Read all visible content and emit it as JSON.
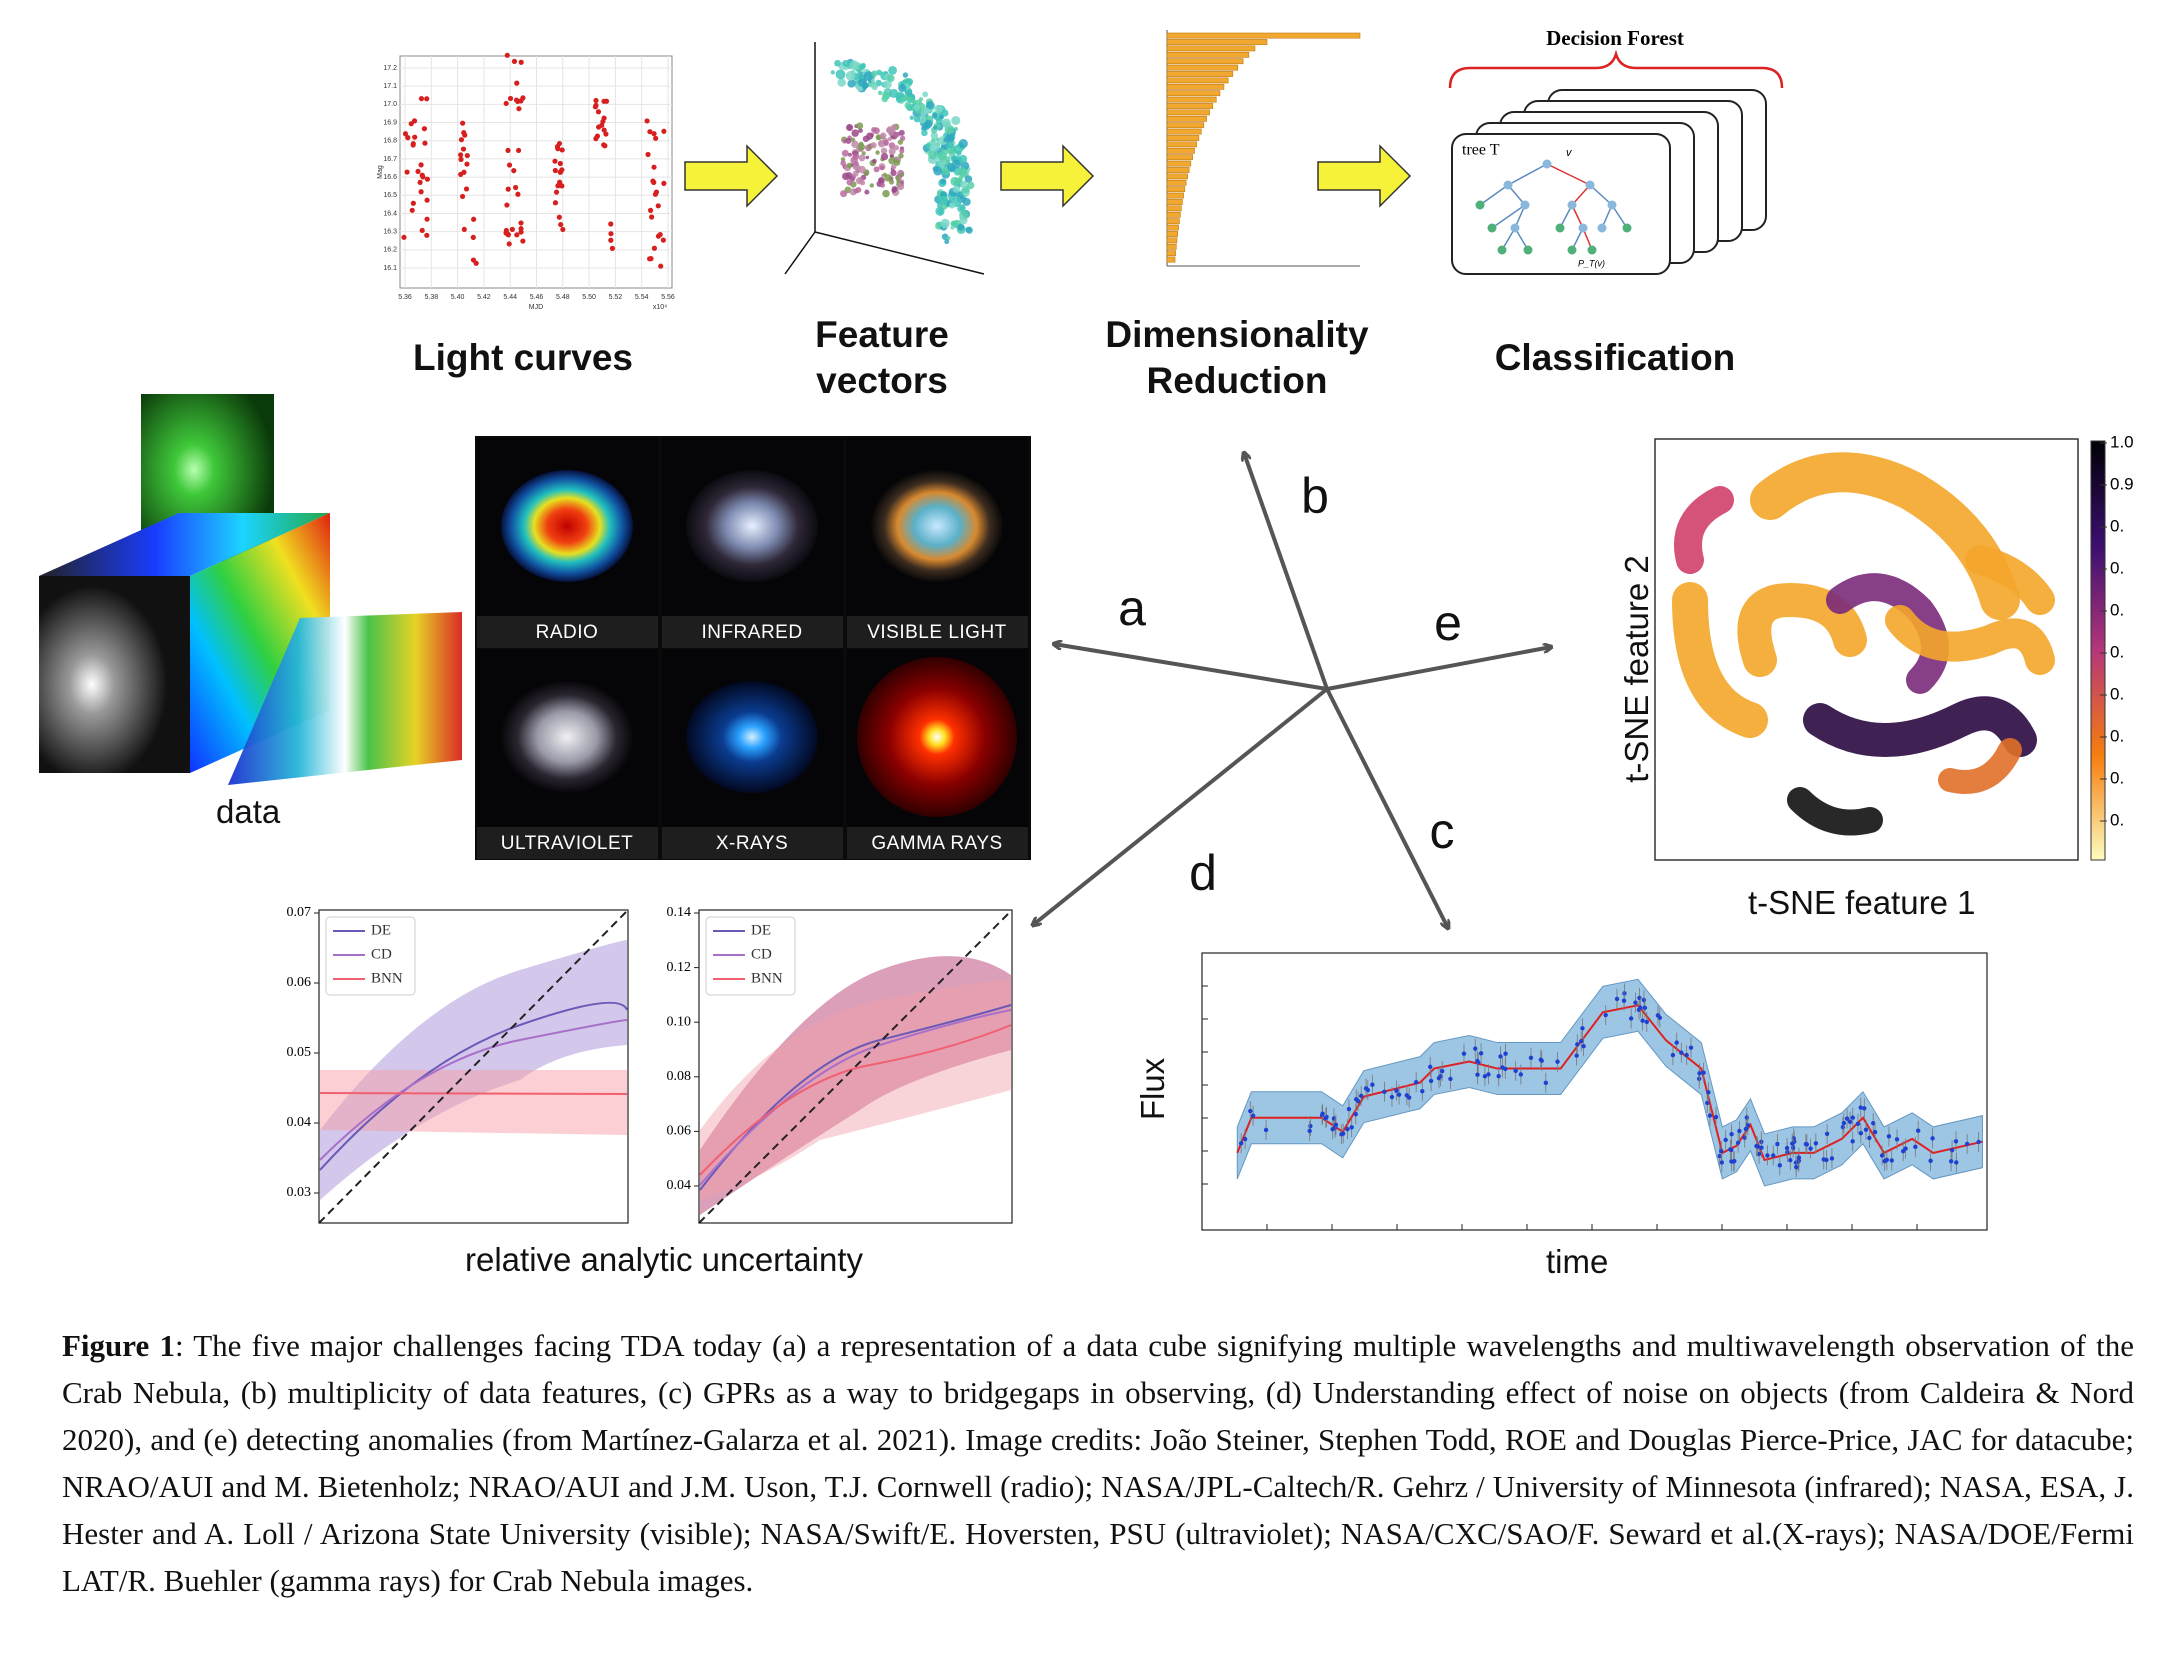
{
  "pipeline": {
    "steps": [
      {
        "label": "Light curves"
      },
      {
        "label": "Feature vectors"
      },
      {
        "label": "Dimensionality Reduction"
      },
      {
        "label": "Classification"
      }
    ],
    "light_curve_plot": {
      "y_ticks": [
        "17.2",
        "17.1",
        "17.0",
        "16.9",
        "16.8",
        "16.7",
        "16.6",
        "16.5",
        "16.4",
        "16.3",
        "16.2",
        "16.1"
      ],
      "x_ticks": [
        "5.36",
        "5.38",
        "5.40",
        "5.42",
        "5.44",
        "5.46",
        "5.48",
        "5.50",
        "5.52",
        "5.54",
        "5.56"
      ],
      "x_label": "MJD",
      "y_label": "Mag",
      "x_multiplier": "x10⁴"
    },
    "decision_forest": {
      "title": "Decision Forest",
      "tree_label": "tree T",
      "root_label": "v",
      "leaf_label": "P_T(v)"
    }
  },
  "data_cube": {
    "label": "data"
  },
  "crab_nebula": {
    "bands": [
      "RADIO",
      "INFRARED",
      "VISIBLE LIGHT",
      "ULTRAVIOLET",
      "X-RAYS",
      "GAMMA RAYS"
    ]
  },
  "arrows": {
    "a": "a",
    "b": "b",
    "c": "c",
    "d": "d",
    "e": "e"
  },
  "tsne": {
    "x_label": "t-SNE feature 1",
    "y_label": "t-SNE feature 2",
    "colorbar_ticks": [
      "1.0",
      "0.9",
      "0.",
      "0.",
      "0.",
      "0.",
      "0.",
      "0.",
      "0.",
      "0."
    ]
  },
  "uncertainty": {
    "x_label": "relative analytic uncertainty",
    "plots": [
      {
        "y_ticks": [
          "0.07",
          "0.06",
          "0.05",
          "0.04",
          "0.03"
        ],
        "legend": [
          "DE",
          "CD",
          "BNN"
        ]
      },
      {
        "y_ticks": [
          "0.14",
          "0.12",
          "0.10",
          "0.08",
          "0.06",
          "0.04"
        ],
        "legend": [
          "DE",
          "CD",
          "BNN"
        ]
      }
    ]
  },
  "gpr": {
    "x_label": "time",
    "y_label": "Flux"
  },
  "caption": {
    "label": "Figure 1",
    "text": ":   The five major challenges facing TDA today (a) a representation of a data cube signifying multiple wavelengths and multiwavelength observation of the Crab Nebula, (b) multiplicity of data features, (c) GPRs as a way to bridgegaps in observing, (d) Understanding effect of noise on objects (from Caldeira & Nord 2020), and (e) detecting anomalies (from Martínez-Galarza et al. 2021). Image credits: João Steiner, Stephen Todd, ROE and  Douglas Pierce-Price, JAC for datacube; NRAO/AUI and M. Bietenholz; NRAO/AUI and J.M. Uson, T.J. Cornwell (radio); NASA/JPL-Caltech/R. Gehrz / University of Minnesota (infrared); NASA, ESA, J. Hester and A. Loll / Arizona State University (visible); NASA/Swift/E. Hoversten, PSU (ultraviolet); NASA/CXC/SAO/F. Seward et al.(X-rays); NASA/DOE/Fermi LAT/R. Buehler (gamma rays) for Crab Nebula images."
  }
}
